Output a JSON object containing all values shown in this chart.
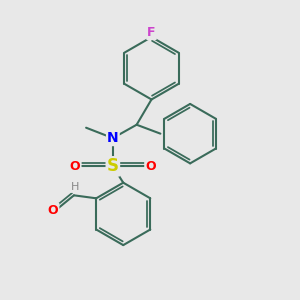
{
  "background_color": "#e8e8e8",
  "bond_color": "#3a6b5a",
  "bond_width": 1.5,
  "atom_colors": {
    "F": "#cc44cc",
    "N": "#0000ff",
    "S": "#cccc00",
    "O": "#ff0000",
    "H": "#888888"
  },
  "font_size_atoms": 9
}
